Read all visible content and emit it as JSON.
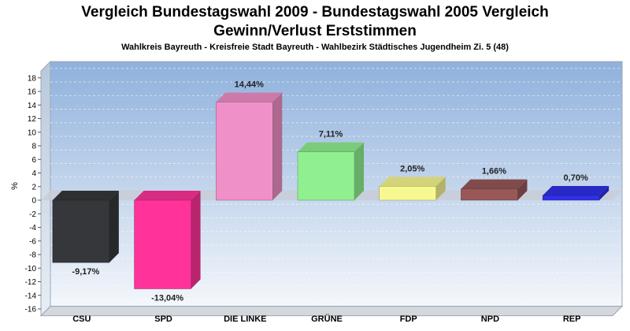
{
  "chart_data": {
    "type": "bar",
    "title": "Vergleich Bundestagswahl 2009 - Bundestagswahl 2005 Vergleich",
    "title_line2": "Gewinn/Verlust Erststimmen",
    "subtitle": "Wahlkreis Bayreuth - Kreisfreie Stadt Bayreuth - Wahlbezirk Städtisches Jugendheim Zi. 5 (48)",
    "ylabel": "%",
    "xlabel": "",
    "ylim": [
      -17,
      19
    ],
    "yticks": [
      18,
      16,
      14,
      12,
      10,
      8,
      6,
      4,
      2,
      0,
      -2,
      -4,
      -6,
      -8,
      -10,
      -12,
      -14,
      -16
    ],
    "categories": [
      "CSU",
      "SPD",
      "DIE LINKE",
      "GRÜNE",
      "FDP",
      "NPD",
      "REP"
    ],
    "values": [
      -9.17,
      -13.04,
      14.44,
      7.11,
      2.05,
      1.66,
      0.7
    ],
    "value_labels": [
      "-9,17%",
      "-13,04%",
      "14,44%",
      "7,11%",
      "2,05%",
      "1,66%",
      "0,70%"
    ],
    "colors": [
      "#35373a",
      "#ff3399",
      "#f090c8",
      "#90f090",
      "#f8f890",
      "#985858",
      "#3030e8"
    ],
    "grid": true,
    "legend": "none"
  }
}
